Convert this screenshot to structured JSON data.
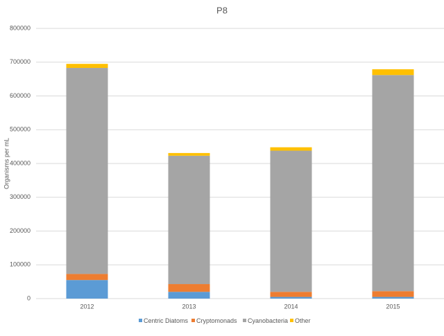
{
  "chart_data": {
    "type": "stacked-bar",
    "title": "P8",
    "y_label": "Organisms per mL",
    "categories": [
      "2012",
      "2013",
      "2014",
      "2015"
    ],
    "series": [
      {
        "name": "Centric Diatoms",
        "color": "#5b9bd5",
        "values": [
          55000,
          20000,
          5000,
          5000
        ]
      },
      {
        "name": "Cryptomonads",
        "color": "#ed7d31",
        "values": [
          18000,
          23000,
          15000,
          17000
        ]
      },
      {
        "name": "Cyanobacteria",
        "color": "#a5a5a5",
        "values": [
          610000,
          380000,
          418000,
          640000
        ]
      },
      {
        "name": "Other",
        "color": "#ffc000",
        "values": [
          12000,
          8000,
          10000,
          17000
        ]
      }
    ],
    "ylim": [
      0,
      800000
    ],
    "yticks": [
      0,
      100000,
      200000,
      300000,
      400000,
      500000,
      600000,
      700000,
      800000
    ],
    "grid": true,
    "legend": "bottom"
  }
}
